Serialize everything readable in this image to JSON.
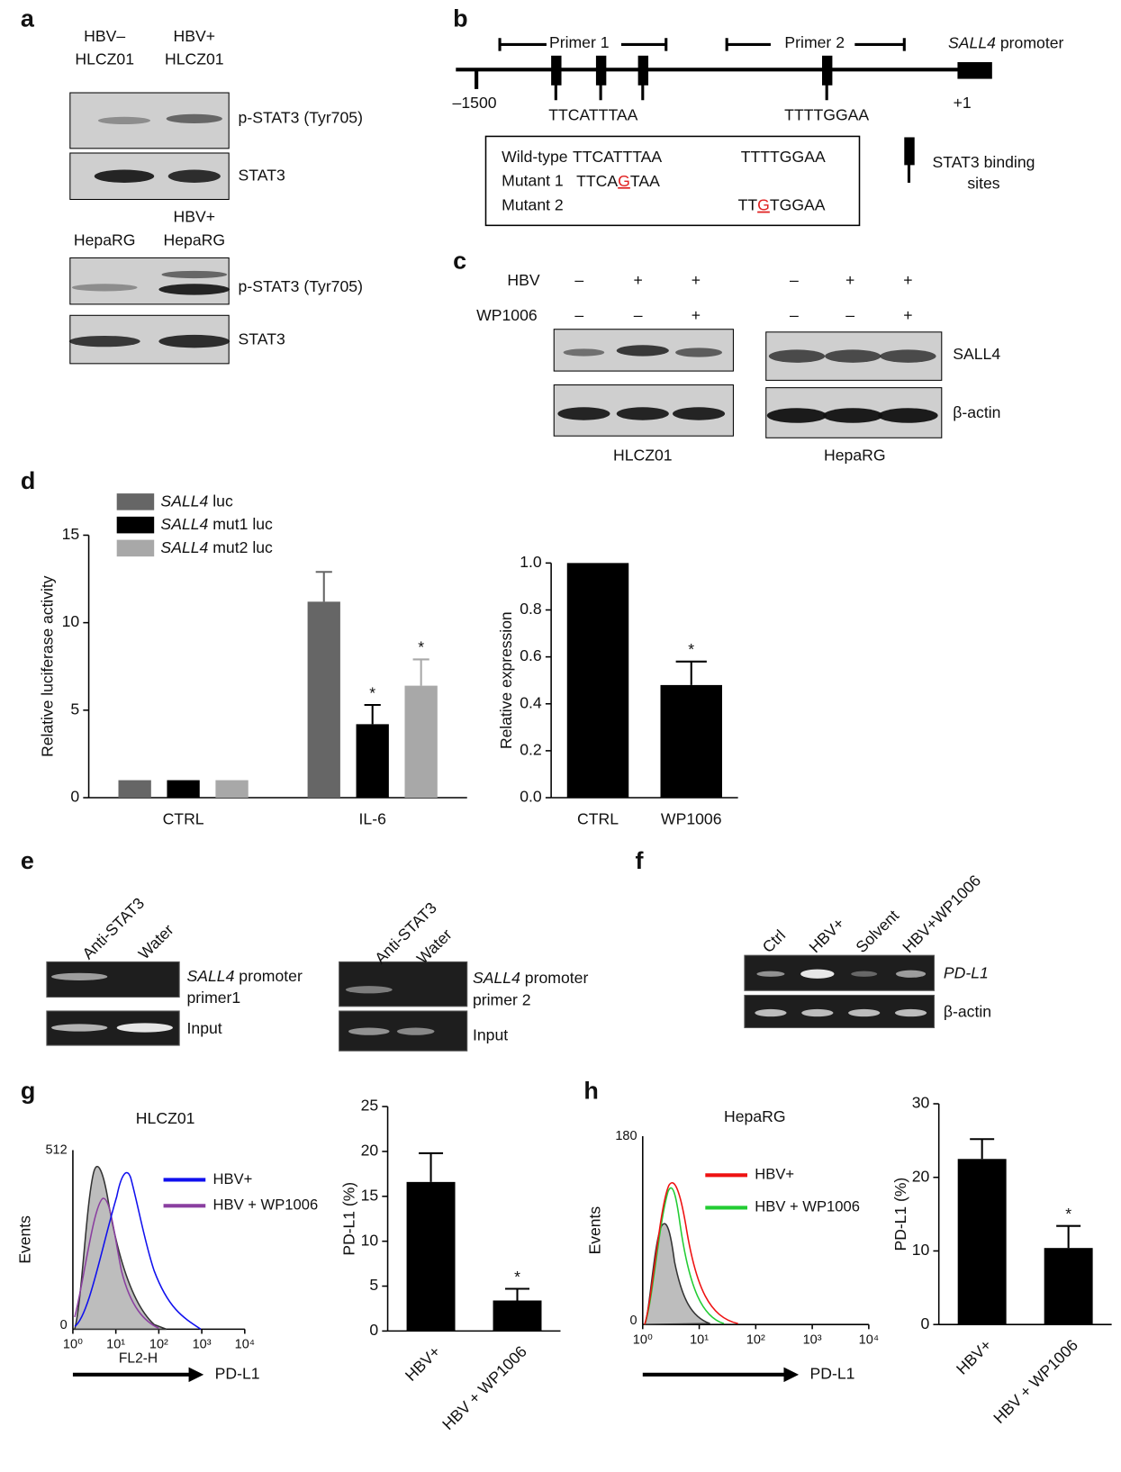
{
  "panel_labels": [
    "a",
    "b",
    "c",
    "d",
    "e",
    "f",
    "g",
    "h"
  ],
  "panel_a": {
    "lanes_top": [
      [
        "HBV–",
        "HLCZ01"
      ],
      [
        "HBV+",
        "HLCZ01"
      ]
    ],
    "blots_top": [
      "p-STAT3 (Tyr705)",
      "STAT3"
    ],
    "lanes_bottom": [
      [
        "HepaRG"
      ],
      [
        "HBV+",
        "HepaRG"
      ]
    ],
    "blots_bottom": [
      "p-STAT3 (Tyr705)",
      "STAT3"
    ]
  },
  "panel_b": {
    "primers": [
      "Primer 1",
      "Primer 2"
    ],
    "promoter": "SALL4 promoter",
    "positions": [
      "–1500",
      "+1"
    ],
    "sites": [
      "TTCATTTAA",
      "TTTTGGAA"
    ],
    "table": {
      "wild_type": [
        "Wild-type",
        "TTCATTTAA",
        "TTTTGGAA"
      ],
      "mutant_1": {
        "name": "Mutant 1",
        "sequence": [
          "TTCA",
          "G",
          "TAA"
        ]
      },
      "mutant_2": {
        "name": "Mutant 2",
        "sequence": [
          "TT",
          "G",
          "TGGAA"
        ]
      }
    },
    "key": [
      "STAT3 binding",
      "sites"
    ]
  },
  "panel_c": {
    "rows": [
      "HBV",
      "WP1006"
    ],
    "signs": [
      [
        "–",
        "+",
        "+",
        "–",
        "+",
        "+"
      ],
      [
        "–",
        "–",
        "+",
        "–",
        "–",
        "+"
      ]
    ],
    "blots": [
      "SALL4",
      "β-actin"
    ],
    "cells": [
      "HLCZ01",
      "HepaRG"
    ]
  },
  "panel_e": {
    "left": {
      "lanes": [
        "Anti-STAT3",
        "Water"
      ],
      "rows": [
        [
          "SALL4 promoter",
          "primer1"
        ],
        [
          "Input"
        ]
      ]
    },
    "right": {
      "lanes": [
        "Anti-STAT3",
        "Water"
      ],
      "rows": [
        [
          "SALL4 promoter",
          "primer 2"
        ],
        [
          "Input"
        ]
      ]
    }
  },
  "panel_f": {
    "lanes": [
      "Ctrl",
      "HBV+",
      "Solvent",
      "HBV+WP1006"
    ],
    "rows": [
      "PD-L1",
      "β-actin"
    ]
  },
  "flow_g": {
    "title": "HLCZ01",
    "y_label": "Events",
    "y_ticks": [
      512,
      0
    ],
    "x_ticks": [
      "10⁰",
      "10¹",
      "10²",
      "10³",
      "10⁴"
    ],
    "x_label": "FL2-H",
    "marker": "PD-L1",
    "legend": [
      {
        "name": "HBV+",
        "color": "#1010ee"
      },
      {
        "name": "HBV + WP1006",
        "color": "#8a3fa0"
      }
    ]
  },
  "flow_h": {
    "title": "HepaRG",
    "y_label": "Events",
    "y_ticks": [
      180,
      0
    ],
    "x_ticks": [
      "10⁰",
      "10¹",
      "10²",
      "10³",
      "10⁴"
    ],
    "marker": "PD-L1",
    "legend": [
      {
        "name": "HBV+",
        "color": "#ee1111"
      },
      {
        "name": "HBV + WP1006",
        "color": "#22cc33"
      }
    ]
  },
  "chart_data": [
    {
      "type": "bar",
      "y_label": "Relative luciferase activity",
      "categories": [
        "CTRL",
        "IL-6"
      ],
      "series": [
        {
          "name": "SALL4 luc",
          "color": "#666666",
          "values": [
            1,
            11.2
          ],
          "errors": [
            0,
            1.7
          ],
          "markers": [
            null,
            null
          ]
        },
        {
          "name": "SALL4 mut1 luc",
          "color": "#000000",
          "values": [
            1,
            4.2
          ],
          "errors": [
            0,
            1.1
          ],
          "markers": [
            null,
            "*"
          ]
        },
        {
          "name": "SALL4 mut2 luc",
          "color": "#a8a8a8",
          "values": [
            1,
            6.4
          ],
          "errors": [
            0,
            1.5
          ],
          "markers": [
            null,
            "*"
          ]
        }
      ],
      "ylim": [
        0,
        15
      ],
      "yticks": [
        0,
        5,
        10,
        15
      ]
    },
    {
      "type": "bar",
      "y_label": "Relative expression",
      "categories": [
        "CTRL",
        "WP1006"
      ],
      "color": "#000000",
      "values": [
        1.0,
        0.48
      ],
      "errors": [
        0,
        0.1
      ],
      "markers": [
        null,
        "*"
      ],
      "ylim": [
        0,
        1.0
      ],
      "yticks": [
        {
          "value": 0,
          "label": "0.0"
        },
        {
          "value": 0.2,
          "label": "0.2"
        },
        {
          "value": 0.4,
          "label": "0.4"
        },
        {
          "value": 0.6,
          "label": "0.6"
        },
        {
          "value": 0.8,
          "label": "0.8"
        },
        {
          "value": 1.0,
          "label": "1.0"
        }
      ]
    },
    {
      "type": "bar",
      "y_label": "PD-L1 (%)",
      "categories": [
        "HBV+",
        "HBV + WP1006"
      ],
      "color": "#000000",
      "values": [
        16.6,
        3.4
      ],
      "errors": [
        3.2,
        1.3
      ],
      "markers": [
        null,
        "*"
      ],
      "ylim": [
        0,
        25
      ],
      "yticks": [
        0,
        5,
        10,
        15,
        20,
        25
      ]
    },
    {
      "type": "bar",
      "y_label": "PD-L1 (%)",
      "categories": [
        "HBV+",
        "HBV + WP1006"
      ],
      "color": "#000000",
      "values": [
        22.5,
        10.4
      ],
      "errors": [
        2.7,
        3.0
      ],
      "markers": [
        null,
        "*"
      ],
      "ylim": [
        0,
        30
      ],
      "yticks": [
        0,
        10,
        20,
        30
      ]
    }
  ]
}
